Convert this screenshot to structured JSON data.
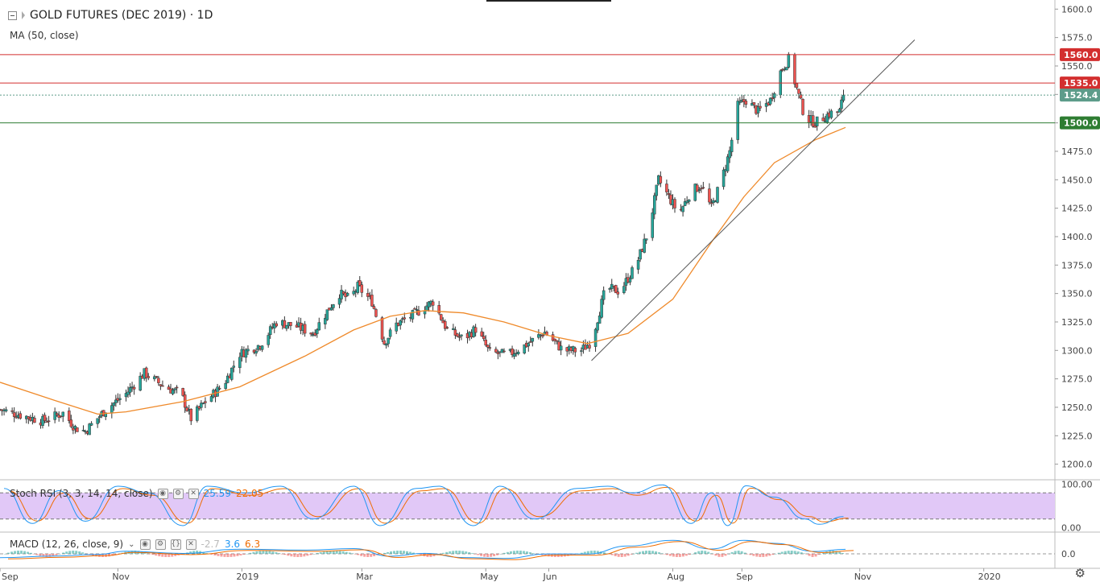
{
  "header": {
    "title": "GOLD FUTURES (DEC 2019) · 1D",
    "indicator": "MA (50, close)"
  },
  "stoch_legend": {
    "label": "Stoch RSI (3, 3, 14, 14, close)",
    "k": "25.59",
    "d": "22.05"
  },
  "macd_legend": {
    "label": "MACD (12, 26, close, 9)",
    "hist": "-2.7",
    "macd": "3.6",
    "signal": "6.3"
  },
  "icons": {
    "settings": "gear-icon",
    "collapse": "collapse-icon",
    "eye": "eye-icon",
    "close": "close-icon"
  },
  "colors": {
    "up": "#26a69a",
    "down": "#ef5350",
    "ma": "#ef8a2b",
    "resistance": "#d32f2f",
    "support": "#2e7d32",
    "last_price": "#5d9c8a",
    "stoch_k": "#2196f3",
    "stoch_d": "#ef6c00",
    "stoch_band": "#e1c8f7"
  },
  "chart_data": [
    {
      "type": "candlestick",
      "title": "GOLD FUTURES (DEC 2019) · 1D",
      "y_ticks": [
        "1600.0",
        "1575.0",
        "1550.0",
        "1525.0",
        "1500.0",
        "1475.0",
        "1450.0",
        "1425.0",
        "1400.0",
        "1375.0",
        "1350.0",
        "1325.0",
        "1300.0",
        "1275.0",
        "1250.0",
        "1225.0",
        "1200.0"
      ],
      "ylim": [
        1187,
        1608
      ],
      "x_ticks": [
        "Sep",
        "Nov",
        "2019",
        "Mar",
        "May",
        "Jun",
        "Aug",
        "Sep",
        "Nov",
        "2020"
      ],
      "x_range": [
        "2018-09-04",
        "2020-02-05"
      ],
      "close_anchors": [
        [
          "2018-09-04",
          1248
        ],
        [
          "2018-09-25",
          1238
        ],
        [
          "2018-10-05",
          1245
        ],
        [
          "2018-10-11",
          1232
        ],
        [
          "2018-10-16",
          1229
        ],
        [
          "2018-10-26",
          1248
        ],
        [
          "2018-11-05",
          1262
        ],
        [
          "2018-11-14",
          1280
        ],
        [
          "2018-11-24",
          1268
        ],
        [
          "2018-12-02",
          1262
        ],
        [
          "2018-12-07",
          1240
        ],
        [
          "2018-12-14",
          1255
        ],
        [
          "2018-12-23",
          1270
        ],
        [
          "2018-12-31",
          1297
        ],
        [
          "2019-01-10",
          1305
        ],
        [
          "2019-01-18",
          1325
        ],
        [
          "2019-01-28",
          1321
        ],
        [
          "2019-02-05",
          1315
        ],
        [
          "2019-02-14",
          1340
        ],
        [
          "2019-02-18",
          1350
        ],
        [
          "2019-02-23",
          1345
        ],
        [
          "2019-02-27",
          1356
        ],
        [
          "2019-03-06",
          1343
        ],
        [
          "2019-03-12",
          1307
        ],
        [
          "2019-03-18",
          1323
        ],
        [
          "2019-03-26",
          1331
        ],
        [
          "2019-04-05",
          1343
        ],
        [
          "2019-04-12",
          1318
        ],
        [
          "2019-04-20",
          1310
        ],
        [
          "2019-04-26",
          1319
        ],
        [
          "2019-05-03",
          1298
        ],
        [
          "2019-05-12",
          1296
        ],
        [
          "2019-05-20",
          1304
        ],
        [
          "2019-05-30",
          1316
        ],
        [
          "2019-06-08",
          1300
        ],
        [
          "2019-06-17",
          1300
        ],
        [
          "2019-06-22",
          1308
        ],
        [
          "2019-06-29",
          1355
        ],
        [
          "2019-07-06",
          1352
        ],
        [
          "2019-07-14",
          1375
        ],
        [
          "2019-07-20",
          1405
        ],
        [
          "2019-07-25",
          1450
        ],
        [
          "2019-07-30",
          1435
        ],
        [
          "2019-08-04",
          1420
        ],
        [
          "2019-08-10",
          1440
        ],
        [
          "2019-08-15",
          1445
        ],
        [
          "2019-08-20",
          1425
        ],
        [
          "2019-08-25",
          1450
        ],
        [
          "2019-08-29",
          1475
        ],
        [
          "2019-09-02",
          1515
        ],
        [
          "2019-09-06",
          1520
        ],
        [
          "2019-09-12",
          1510
        ],
        [
          "2019-09-18",
          1520
        ],
        [
          "2019-09-23",
          1545
        ],
        [
          "2019-09-27",
          1556
        ],
        [
          "2019-10-01",
          1530
        ],
        [
          "2019-10-05",
          1505
        ],
        [
          "2019-10-10",
          1500
        ],
        [
          "2019-10-17",
          1508
        ],
        [
          "2019-10-22",
          1510
        ],
        [
          "2019-10-24",
          1524.4
        ]
      ],
      "ma_50_close": [
        [
          "2018-09-04",
          1272
        ],
        [
          "2018-10-01",
          1256
        ],
        [
          "2018-10-22",
          1244
        ],
        [
          "2018-11-05",
          1246
        ],
        [
          "2018-12-03",
          1255
        ],
        [
          "2018-12-31",
          1268
        ],
        [
          "2019-02-01",
          1295
        ],
        [
          "2019-02-25",
          1318
        ],
        [
          "2019-03-15",
          1330
        ],
        [
          "2019-04-01",
          1335
        ],
        [
          "2019-04-20",
          1333
        ],
        [
          "2019-05-10",
          1325
        ],
        [
          "2019-06-01",
          1313
        ],
        [
          "2019-06-20",
          1306
        ],
        [
          "2019-07-10",
          1315
        ],
        [
          "2019-08-01",
          1345
        ],
        [
          "2019-08-20",
          1395
        ],
        [
          "2019-09-05",
          1435
        ],
        [
          "2019-09-20",
          1465
        ],
        [
          "2019-10-10",
          1485
        ],
        [
          "2019-10-25",
          1496
        ]
      ],
      "horizontal_levels": [
        {
          "value": 1560.0,
          "label": "1560.0",
          "kind": "resistance"
        },
        {
          "value": 1535.0,
          "label": "1535.0",
          "kind": "resistance"
        },
        {
          "value": 1524.4,
          "label": "1524.4",
          "kind": "last-price"
        },
        {
          "value": 1500.0,
          "label": "1500.0",
          "kind": "support"
        }
      ],
      "trendline": [
        [
          "2019-06-22",
          1291
        ],
        [
          "2019-11-28",
          1573
        ]
      ]
    },
    {
      "type": "line",
      "title": "Stoch RSI (3, 3, 14, 14, close)",
      "y_ticks": [
        "100.00",
        "0.00"
      ],
      "ylim": [
        -8,
        108
      ],
      "band": [
        20,
        80
      ],
      "series": [
        {
          "name": "K",
          "last": 25.59,
          "peaks": [
            [
              "2018-09-06",
              90
            ],
            [
              "2018-09-20",
              10
            ],
            [
              "2018-10-03",
              85
            ],
            [
              "2018-10-16",
              15
            ],
            [
              "2018-11-01",
              95
            ],
            [
              "2018-11-16",
              80
            ],
            [
              "2018-12-03",
              5
            ],
            [
              "2018-12-15",
              95
            ],
            [
              "2019-01-03",
              80
            ],
            [
              "2019-01-20",
              95
            ],
            [
              "2019-02-05",
              20
            ],
            [
              "2019-02-25",
              95
            ],
            [
              "2019-03-10",
              5
            ],
            [
              "2019-03-28",
              90
            ],
            [
              "2019-04-08",
              95
            ],
            [
              "2019-04-25",
              5
            ],
            [
              "2019-05-08",
              95
            ],
            [
              "2019-05-25",
              20
            ],
            [
              "2019-06-15",
              90
            ],
            [
              "2019-06-30",
              95
            ],
            [
              "2019-07-12",
              80
            ],
            [
              "2019-07-27",
              98
            ],
            [
              "2019-08-10",
              10
            ],
            [
              "2019-08-20",
              80
            ],
            [
              "2019-08-28",
              5
            ],
            [
              "2019-09-06",
              96
            ],
            [
              "2019-09-20",
              70
            ],
            [
              "2019-10-05",
              20
            ],
            [
              "2019-10-12",
              8
            ],
            [
              "2019-10-24",
              25.59
            ]
          ]
        },
        {
          "name": "D",
          "last": 22.05
        }
      ]
    },
    {
      "type": "histogram+line",
      "title": "MACD (12, 26, close, 9)",
      "y_ticks": [
        "0.0"
      ],
      "values": {
        "histogram": -2.7,
        "macd": 3.6,
        "signal": 6.3
      }
    }
  ]
}
